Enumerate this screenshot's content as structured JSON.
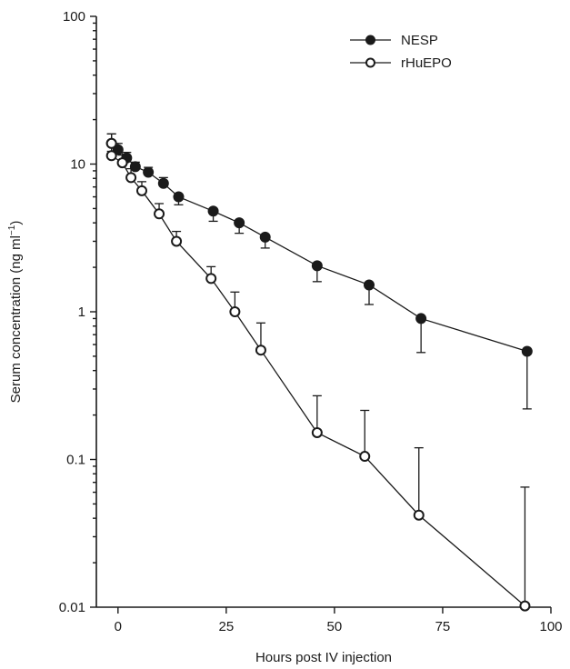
{
  "chart_data": {
    "type": "line",
    "xlabel": "Hours post IV injection",
    "ylabel": "Serum concentration (ng ml",
    "ylabel_sup": "−1",
    "ylabel_close": ")",
    "xlim": [
      -5,
      100
    ],
    "ylim": [
      0.01,
      100
    ],
    "yscale": "log",
    "x_ticks": [
      0,
      25,
      50,
      75,
      100
    ],
    "x_tick_labels": [
      "0",
      "25",
      "50",
      "75",
      "100"
    ],
    "y_ticks": [
      0.01,
      0.1,
      1,
      10,
      100
    ],
    "y_tick_labels": [
      "0.01",
      "0.1",
      "1",
      "10",
      "100"
    ],
    "legend_position": "top-right",
    "series": [
      {
        "name": "NESP",
        "marker": "filled-circle",
        "points": [
          {
            "x": -1.5,
            "y": 13.8,
            "err": 16.0
          },
          {
            "x": 0,
            "y": 12.5,
            "err": 13.8
          },
          {
            "x": 2,
            "y": 11.0,
            "err": 12.0
          },
          {
            "x": 4,
            "y": 9.6,
            "err": 10.3
          },
          {
            "x": 7,
            "y": 8.8,
            "err": 9.5
          },
          {
            "x": 10.5,
            "y": 7.4,
            "err": 8.1
          },
          {
            "x": 14,
            "y": 6.0,
            "err": 5.3
          },
          {
            "x": 22,
            "y": 4.8,
            "err": 4.1
          },
          {
            "x": 28,
            "y": 4.0,
            "err": 3.4
          },
          {
            "x": 34,
            "y": 3.2,
            "err": 2.7
          },
          {
            "x": 46,
            "y": 2.05,
            "err": 1.6
          },
          {
            "x": 58,
            "y": 1.52,
            "err": 1.12
          },
          {
            "x": 70,
            "y": 0.9,
            "err": 0.53
          },
          {
            "x": 94.5,
            "y": 0.54,
            "err": 0.22
          }
        ]
      },
      {
        "name": "rHuEPO",
        "marker": "open-circle",
        "points": [
          {
            "x": -1.5,
            "y": 13.8,
            "err": 16.0
          },
          {
            "x": -1.5,
            "y": 11.4,
            "err": 12.2
          },
          {
            "x": 1,
            "y": 10.2,
            "err": 11.5
          },
          {
            "x": 3,
            "y": 8.1,
            "err": 9.3
          },
          {
            "x": 5.5,
            "y": 6.6,
            "err": 7.6
          },
          {
            "x": 9.5,
            "y": 4.6,
            "err": 5.4
          },
          {
            "x": 13.5,
            "y": 3.0,
            "err": 3.5
          },
          {
            "x": 21.5,
            "y": 1.68,
            "err": 2.02
          },
          {
            "x": 27,
            "y": 1.0,
            "err": 1.36
          },
          {
            "x": 33,
            "y": 0.55,
            "err": 0.84
          },
          {
            "x": 46,
            "y": 0.152,
            "err": 0.27
          },
          {
            "x": 57,
            "y": 0.105,
            "err": 0.215
          },
          {
            "x": 69.5,
            "y": 0.042,
            "err": 0.12
          },
          {
            "x": 94,
            "y": 0.0102,
            "err": 0.065
          }
        ]
      }
    ]
  }
}
